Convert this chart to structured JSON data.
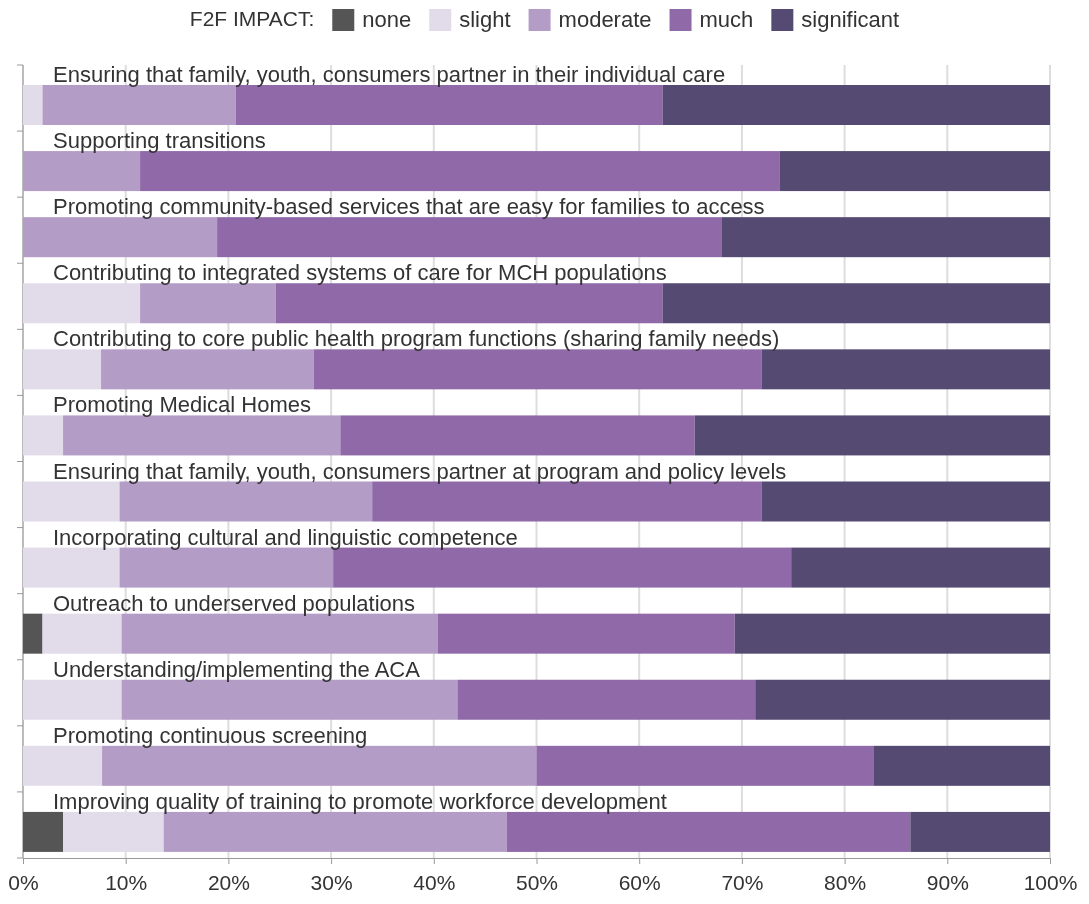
{
  "chart_data": {
    "type": "bar",
    "orientation": "horizontal",
    "stacked": true,
    "legend_title": "F2F IMPACT:",
    "legend": "top",
    "grid": "x",
    "categories": [
      "Ensuring that family, youth, consumers partner in their individual care",
      "Supporting transitions",
      "Promoting community-based services that are easy for families to access",
      "Contributing to integrated systems of care for MCH populations",
      "Contributing to core public health program functions (sharing family needs)",
      "Promoting Medical Homes",
      "Ensuring that family, youth, consumers partner at program and policy levels",
      "Incorporating cultural and linguistic competence",
      "Outreach to underserved populations",
      "Understanding/implementing the ACA",
      "Promoting continuous screening",
      "Improving quality of training to promote workforce development"
    ],
    "series": [
      {
        "name": "none",
        "color": "#555555",
        "values": [
          0,
          0,
          0,
          0,
          0,
          0,
          0,
          0,
          1.9,
          0,
          0,
          3.9
        ]
      },
      {
        "name": "slight",
        "color": "#e2dcea",
        "values": [
          1.9,
          0,
          0,
          11.4,
          7.6,
          3.9,
          9.4,
          9.4,
          7.7,
          9.6,
          7.7,
          9.8
        ]
      },
      {
        "name": "moderate",
        "color": "#b39cc6",
        "values": [
          18.8,
          11.4,
          18.9,
          13.2,
          20.7,
          27.0,
          24.6,
          20.8,
          30.8,
          32.7,
          42.3,
          33.4
        ]
      },
      {
        "name": "much",
        "color": "#8f69a8",
        "values": [
          41.6,
          62.3,
          49.1,
          37.7,
          43.6,
          34.5,
          37.9,
          44.6,
          28.9,
          29.0,
          32.8,
          39.3
        ]
      },
      {
        "name": "significant",
        "color": "#544a72",
        "values": [
          37.7,
          26.3,
          32.0,
          37.7,
          28.1,
          34.6,
          28.1,
          25.2,
          30.7,
          28.7,
          17.2,
          13.6
        ]
      }
    ],
    "xlim": [
      0,
      100
    ],
    "xticks": [
      {
        "value": 0,
        "label": "0%"
      },
      {
        "value": 10,
        "label": "10%"
      },
      {
        "value": 20,
        "label": "20%"
      },
      {
        "value": 30,
        "label": "30%"
      },
      {
        "value": 40,
        "label": "40%"
      },
      {
        "value": 50,
        "label": "50%"
      },
      {
        "value": 60,
        "label": "60%"
      },
      {
        "value": 70,
        "label": "70%"
      },
      {
        "value": 80,
        "label": "80%"
      },
      {
        "value": 90,
        "label": "90%"
      },
      {
        "value": 100,
        "label": "100%"
      }
    ]
  }
}
